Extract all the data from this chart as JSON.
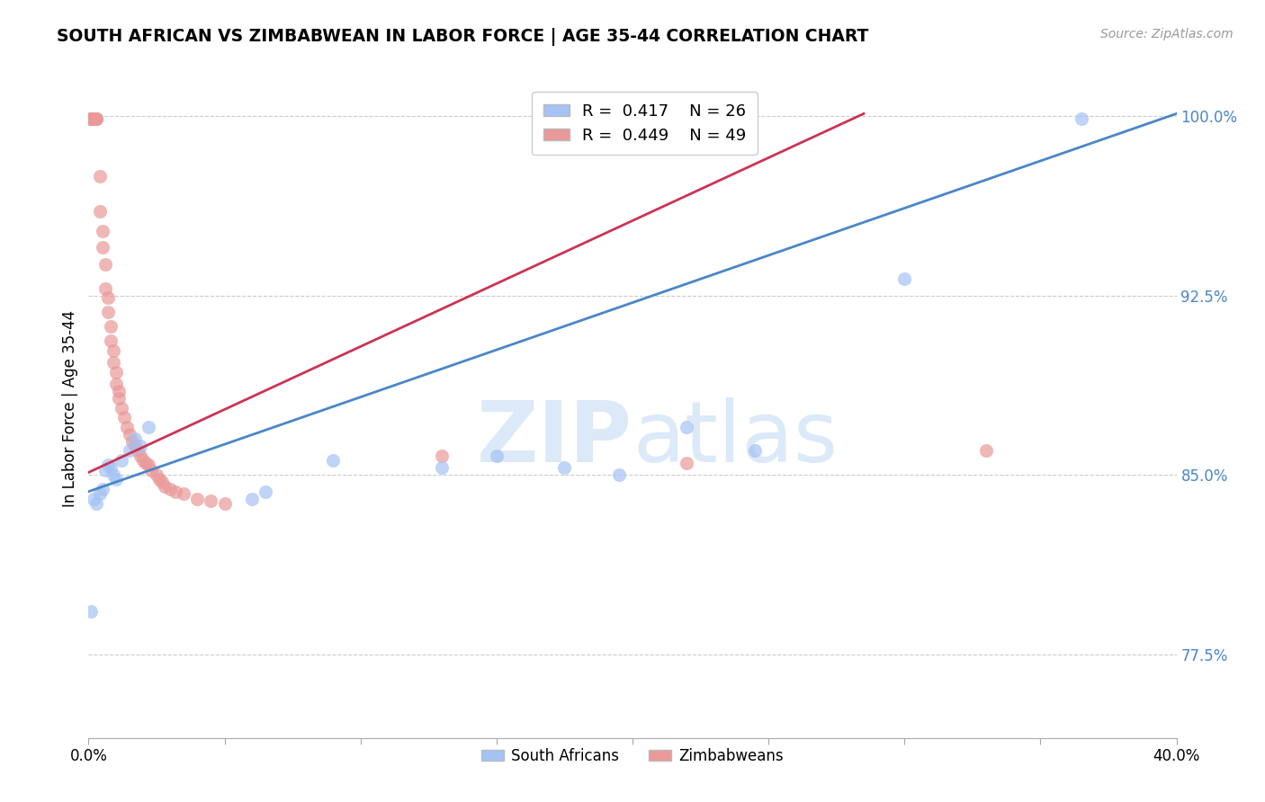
{
  "title": "SOUTH AFRICAN VS ZIMBABWEAN IN LABOR FORCE | AGE 35-44 CORRELATION CHART",
  "source": "Source: ZipAtlas.com",
  "ylabel": "In Labor Force | Age 35-44",
  "xlim": [
    0.0,
    0.4
  ],
  "ylim": [
    0.74,
    1.015
  ],
  "xticks": [
    0.0,
    0.05,
    0.1,
    0.15,
    0.2,
    0.25,
    0.3,
    0.35,
    0.4
  ],
  "xticklabels": [
    "0.0%",
    "",
    "",
    "",
    "",
    "",
    "",
    "",
    "40.0%"
  ],
  "yticks": [
    0.775,
    0.85,
    0.925,
    1.0
  ],
  "yticklabels": [
    "77.5%",
    "85.0%",
    "92.5%",
    "100.0%"
  ],
  "blue_r": 0.417,
  "blue_n": 26,
  "pink_r": 0.449,
  "pink_n": 49,
  "blue_color": "#a4c2f4",
  "pink_color": "#ea9999",
  "blue_line_color": "#4a86c8",
  "pink_line_color": "#cc3355",
  "watermark_zip": "ZIP",
  "watermark_atlas": "atlas",
  "south_africans_x": [
    0.001,
    0.002,
    0.003,
    0.004,
    0.005,
    0.006,
    0.007,
    0.008,
    0.009,
    0.01,
    0.012,
    0.015,
    0.017,
    0.019,
    0.022,
    0.06,
    0.065,
    0.09,
    0.13,
    0.15,
    0.22,
    0.3,
    0.365,
    0.175,
    0.195,
    0.245
  ],
  "south_africans_y": [
    0.793,
    0.84,
    0.838,
    0.842,
    0.844,
    0.852,
    0.854,
    0.853,
    0.85,
    0.848,
    0.856,
    0.86,
    0.865,
    0.862,
    0.87,
    0.84,
    0.843,
    0.856,
    0.853,
    0.858,
    0.87,
    0.932,
    0.999,
    0.853,
    0.85,
    0.86
  ],
  "zimbabweans_x": [
    0.001,
    0.001,
    0.001,
    0.002,
    0.002,
    0.003,
    0.003,
    0.003,
    0.004,
    0.004,
    0.005,
    0.005,
    0.006,
    0.006,
    0.007,
    0.007,
    0.008,
    0.008,
    0.009,
    0.009,
    0.01,
    0.01,
    0.011,
    0.011,
    0.012,
    0.013,
    0.014,
    0.015,
    0.016,
    0.017,
    0.018,
    0.019,
    0.02,
    0.021,
    0.022,
    0.023,
    0.025,
    0.026,
    0.027,
    0.028,
    0.03,
    0.032,
    0.035,
    0.04,
    0.045,
    0.05,
    0.13,
    0.22,
    0.33
  ],
  "zimbabweans_y": [
    0.999,
    0.999,
    0.999,
    0.999,
    0.999,
    0.999,
    0.999,
    0.999,
    0.975,
    0.96,
    0.952,
    0.945,
    0.938,
    0.928,
    0.924,
    0.918,
    0.912,
    0.906,
    0.902,
    0.897,
    0.893,
    0.888,
    0.885,
    0.882,
    0.878,
    0.874,
    0.87,
    0.867,
    0.864,
    0.862,
    0.86,
    0.858,
    0.856,
    0.855,
    0.854,
    0.852,
    0.85,
    0.848,
    0.847,
    0.845,
    0.844,
    0.843,
    0.842,
    0.84,
    0.839,
    0.838,
    0.858,
    0.855,
    0.86
  ],
  "blue_line_x": [
    0.0,
    0.4
  ],
  "blue_line_y": [
    0.843,
    1.001
  ],
  "pink_line_x": [
    0.0,
    0.285
  ],
  "pink_line_y": [
    0.851,
    1.001
  ]
}
